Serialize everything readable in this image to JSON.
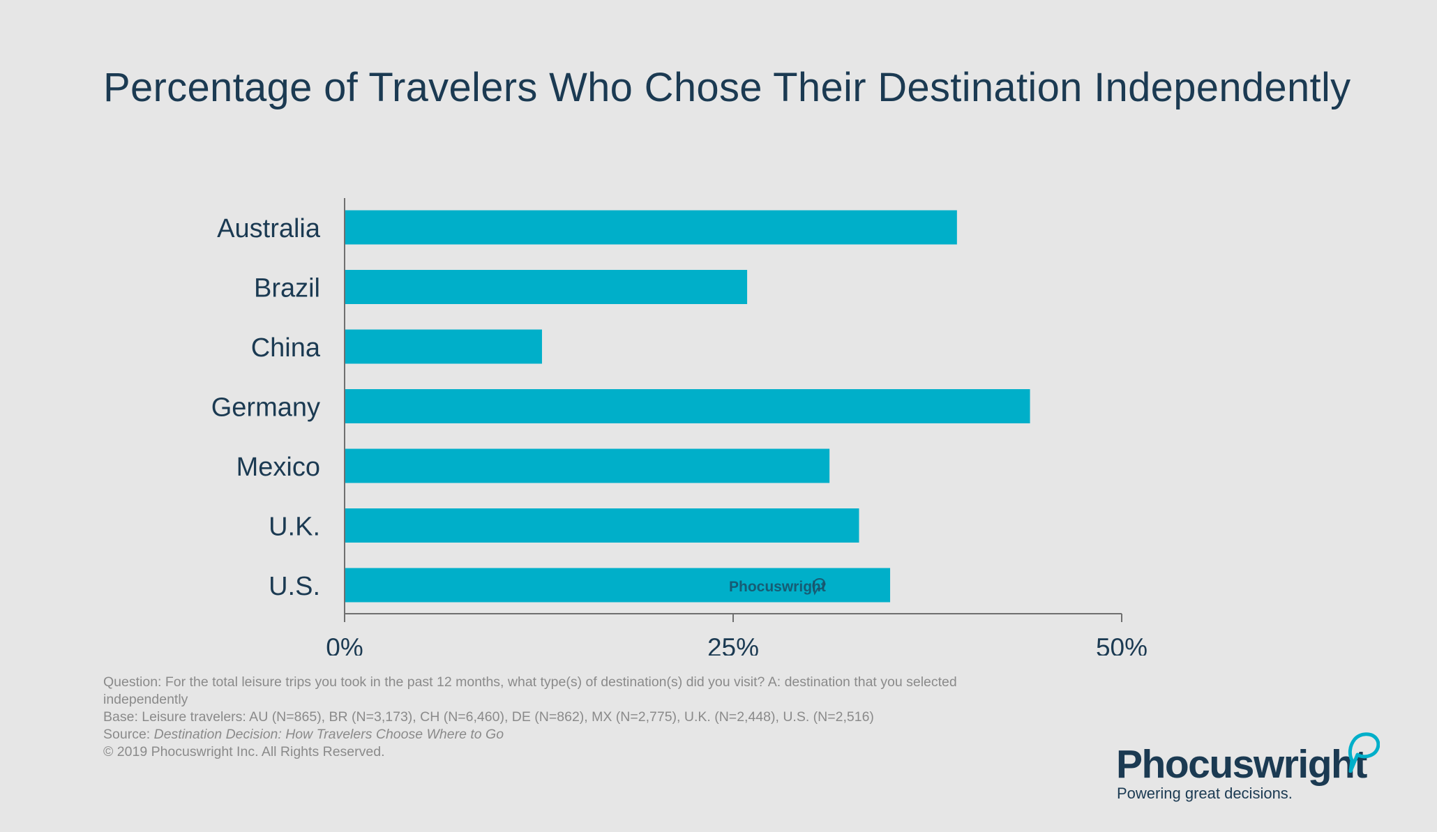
{
  "chart_data": {
    "type": "bar",
    "orientation": "horizontal",
    "title": "Percentage of Travelers Who Chose Their Destination Independently",
    "categories": [
      "Australia",
      "Brazil",
      "China",
      "Germany",
      "Mexico",
      "U.K.",
      "U.S."
    ],
    "values": [
      39.4,
      25.9,
      12.7,
      44.1,
      31.2,
      33.1,
      35.1
    ],
    "xlim": [
      0,
      50
    ],
    "xticks": [
      0,
      25,
      50
    ],
    "xtick_labels": [
      "0%",
      "25%",
      "50%"
    ],
    "xlabel": "",
    "ylabel": "",
    "grid": false,
    "legend": "none",
    "bar_color": "#00afc9",
    "watermark": "Phocuswright"
  },
  "footnote": {
    "question": "Question: For the total leisure trips you took in the past 12 months, what type(s) of destination(s) did you visit? A: destination that you selected independently",
    "base": "Base: Leisure travelers: AU (N=865), BR (N=3,173), CH (N=6,460), DE (N=862), MX (N=2,775), U.K. (N=2,448), U.S. (N=2,516)",
    "source_prefix": "Source: ",
    "source_title": "Destination Decision: How Travelers Choose Where to Go",
    "copyright": "© 2019  Phocuswright Inc. All Rights Reserved."
  },
  "brand": {
    "name": "Phocuswright",
    "tagline": "Powering great decisions.",
    "accent_color": "#00afc9",
    "text_color": "#1b3a52"
  }
}
